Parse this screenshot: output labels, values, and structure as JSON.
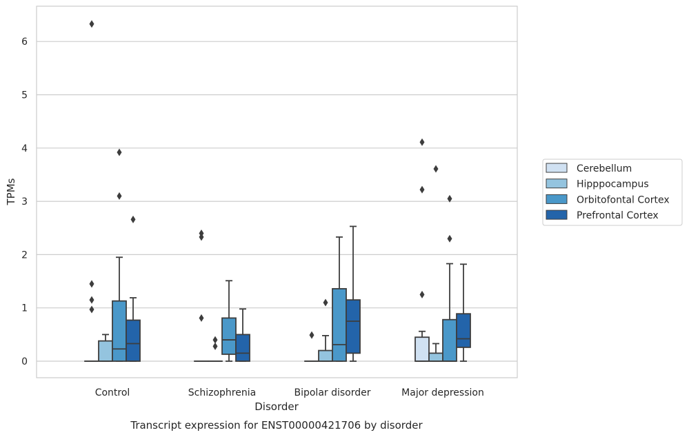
{
  "chart_data": {
    "type": "box",
    "title": "Transcript expression for ENST00000421706 by disorder",
    "xlabel": "Disorder",
    "ylabel": "TPMs",
    "ylim": [
      -0.3,
      6.65
    ],
    "yticks": [
      "0",
      "1",
      "2",
      "3",
      "4",
      "5",
      "6"
    ],
    "grid": "horizontal",
    "legend_position": "right",
    "categories": [
      "Control",
      "Schizophrenia",
      "Bipolar disorder",
      "Major depression"
    ],
    "series": [
      {
        "name": "Cerebellum",
        "color": "#d0e1f2",
        "boxes": [
          {
            "whislo": 0,
            "q1": 0,
            "med": 0,
            "q3": 0,
            "whishi": 0,
            "fliers": [
              0.97,
              1.15,
              1.45,
              6.33
            ]
          },
          {
            "whislo": 0,
            "q1": 0,
            "med": 0,
            "q3": 0,
            "whishi": 0,
            "fliers": [
              0.81,
              2.33,
              2.4
            ]
          },
          {
            "whislo": 0,
            "q1": 0,
            "med": 0,
            "q3": 0,
            "whishi": 0,
            "fliers": [
              0.49
            ]
          },
          {
            "whislo": 0,
            "q1": 0,
            "med": 0,
            "q3": 0.45,
            "whishi": 0.56,
            "fliers": [
              1.25,
              3.22,
              4.11
            ]
          }
        ]
      },
      {
        "name": "Hipppocampus",
        "color": "#94c4df",
        "boxes": [
          {
            "whislo": 0,
            "q1": 0,
            "med": 0,
            "q3": 0.38,
            "whishi": 0.5,
            "fliers": []
          },
          {
            "whislo": 0,
            "q1": 0,
            "med": 0,
            "q3": 0,
            "whishi": 0,
            "fliers": [
              0.28,
              0.4
            ]
          },
          {
            "whislo": 0,
            "q1": 0,
            "med": 0,
            "q3": 0.2,
            "whishi": 0.48,
            "fliers": [
              1.1
            ]
          },
          {
            "whislo": 0,
            "q1": 0,
            "med": 0,
            "q3": 0.15,
            "whishi": 0.33,
            "fliers": [
              3.61
            ]
          }
        ]
      },
      {
        "name": "Orbitofontal Cortex",
        "color": "#4a98c9",
        "boxes": [
          {
            "whislo": 0,
            "q1": 0,
            "med": 0.23,
            "q3": 1.13,
            "whishi": 1.95,
            "fliers": [
              3.1,
              3.92
            ]
          },
          {
            "whislo": 0,
            "q1": 0.13,
            "med": 0.4,
            "q3": 0.81,
            "whishi": 1.51,
            "fliers": []
          },
          {
            "whislo": 0,
            "q1": 0,
            "med": 0.31,
            "q3": 1.36,
            "whishi": 2.33,
            "fliers": []
          },
          {
            "whislo": 0,
            "q1": 0,
            "med": 0,
            "q3": 0.78,
            "whishi": 1.83,
            "fliers": [
              2.3,
              3.05
            ]
          }
        ]
      },
      {
        "name": "Prefrontal Cortex",
        "color": "#2364aa",
        "boxes": [
          {
            "whislo": 0,
            "q1": 0,
            "med": 0.33,
            "q3": 0.77,
            "whishi": 1.19,
            "fliers": [
              2.66
            ]
          },
          {
            "whislo": 0,
            "q1": 0,
            "med": 0.15,
            "q3": 0.5,
            "whishi": 0.98,
            "fliers": []
          },
          {
            "whislo": 0,
            "q1": 0.15,
            "med": 0.75,
            "q3": 1.15,
            "whishi": 2.53,
            "fliers": []
          },
          {
            "whislo": 0,
            "q1": 0.26,
            "med": 0.42,
            "q3": 0.89,
            "whishi": 1.82,
            "fliers": []
          }
        ]
      }
    ]
  }
}
